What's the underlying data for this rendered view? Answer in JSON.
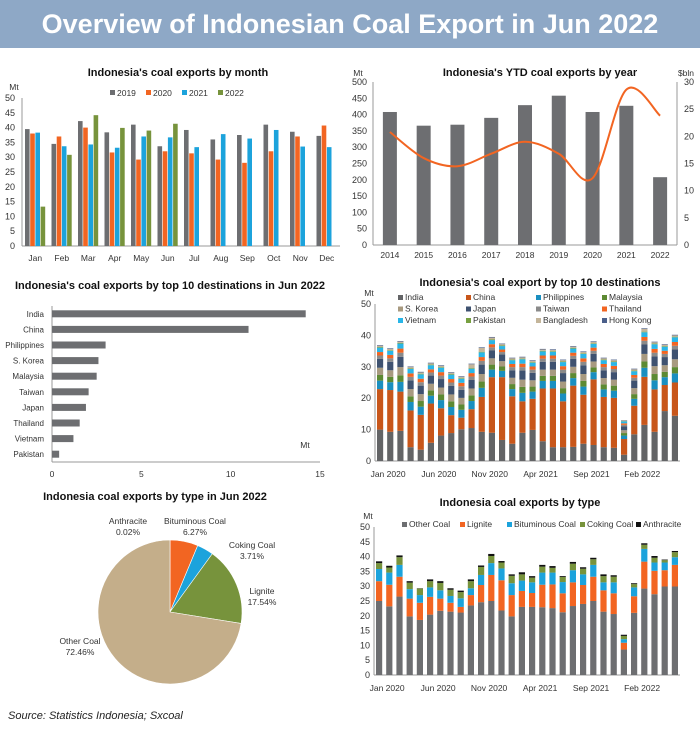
{
  "header": {
    "title": "Overview of Indonesian Coal Export in Jun 2022"
  },
  "footer": {
    "source": "Source: Statistics Indonesia; Sxcoal"
  },
  "colors": {
    "banner": "#8ea8c6",
    "gray": "#6d6e71",
    "orange": "#f26522",
    "blue": "#1ca3dc",
    "green": "#77933c"
  },
  "chart_data": [
    {
      "type": "bar",
      "title": "Indonesia's coal exports by month",
      "ylabel": "Mt",
      "ylim": [
        0,
        50
      ],
      "yticks": [
        0,
        5,
        10,
        15,
        20,
        25,
        30,
        35,
        40,
        45,
        50
      ],
      "legend": "top",
      "categories": [
        "Jan",
        "Feb",
        "Mar",
        "Apr",
        "May",
        "Jun",
        "Jul",
        "Aug",
        "Sep",
        "Oct",
        "Nov",
        "Dec"
      ],
      "series": [
        {
          "name": "2019",
          "color": "#6d6e71",
          "values": [
            39.5,
            34.5,
            42.2,
            38.4,
            41,
            33.7,
            39.2,
            36,
            37.5,
            41,
            38.6,
            37.2
          ]
        },
        {
          "name": "2020",
          "color": "#f26522",
          "values": [
            38,
            37,
            40,
            31.6,
            29.2,
            32,
            31.3,
            29.2,
            28.1,
            32,
            37,
            40.7
          ]
        },
        {
          "name": "2021",
          "color": "#1ca3dc",
          "values": [
            38.3,
            33.7,
            34.3,
            33.2,
            37,
            36.7,
            33.4,
            37.8,
            36.3,
            39.2,
            33.6,
            33.4
          ]
        },
        {
          "name": "2022",
          "color": "#77933c",
          "values": [
            13.3,
            30.8,
            44.2,
            39.9,
            39,
            41.3,
            null,
            null,
            null,
            null,
            null,
            null
          ]
        }
      ]
    },
    {
      "type": "bar+line",
      "title": "Indonesia's YTD coal exports by year",
      "ylabel": "Mt",
      "y2label": "$bln",
      "ylim": [
        0,
        500
      ],
      "yticks": [
        0,
        50,
        100,
        150,
        200,
        250,
        300,
        350,
        400,
        450,
        500
      ],
      "y2lim": [
        0,
        30
      ],
      "y2ticks": [
        0,
        5,
        10,
        15,
        20,
        25,
        30
      ],
      "categories": [
        "2014",
        "2015",
        "2016",
        "2017",
        "2018",
        "2019",
        "2020",
        "2021",
        "2022"
      ],
      "bars": {
        "color": "#6d6e71",
        "values": [
          408,
          366,
          369,
          390,
          429,
          458,
          408,
          427,
          208
        ]
      },
      "line": {
        "color": "#f26522",
        "values": [
          20.8,
          16,
          14.5,
          16.8,
          19,
          16.8,
          12.3,
          28.6,
          23.8
        ]
      }
    },
    {
      "type": "bar",
      "orientation": "horizontal",
      "title": "Indonesia's  coal exports by top 10 destinations in Jun 2022",
      "xlabel": "Mt",
      "xlim": [
        0,
        15
      ],
      "xticks": [
        0,
        5,
        10,
        15
      ],
      "categories": [
        "India",
        "China",
        "Philippines",
        "S. Korea",
        "Malaysia",
        "Taiwan",
        "Japan",
        "Thailand",
        "Vietnam",
        "Pakistan"
      ],
      "values": [
        14.2,
        11,
        3,
        2.6,
        2.5,
        2.05,
        1.9,
        1.55,
        1.2,
        0.4
      ],
      "color": "#6d6e71"
    },
    {
      "type": "bar",
      "stacked": true,
      "title": "Indonesia's coal export by top 10 destinations",
      "ylabel": "Mt",
      "ylim": [
        0,
        50
      ],
      "yticks": [
        0,
        10,
        20,
        30,
        40,
        50
      ],
      "xtick_labels": [
        "Jan 2020",
        "Jun 2020",
        "Nov 2020",
        "Apr 2021",
        "Sep 2021",
        "Feb 2022"
      ],
      "xtick_every": 5,
      "legend": "top",
      "months": 30,
      "series": [
        {
          "name": "India",
          "color": "#636466",
          "values": [
            10,
            9.3,
            9.6,
            4.4,
            3.6,
            5.8,
            8.1,
            8.9,
            10.1,
            10.5,
            9.3,
            9.0,
            6.7,
            5.5,
            9.0,
            9.9,
            6.3,
            4.4,
            4.4,
            4.5,
            5.5,
            5.1,
            4.4,
            4.2,
            2.0,
            8.5,
            11.5,
            9.3,
            15.9,
            14.4
          ]
        },
        {
          "name": "China",
          "color": "#c8561a",
          "values": [
            12.9,
            13.3,
            12.5,
            11.7,
            11.1,
            12.5,
            8.7,
            5.7,
            3.7,
            6.0,
            11.1,
            17.7,
            20.0,
            15.1,
            10.0,
            9.9,
            16.8,
            18.7,
            14.6,
            19.5,
            15.6,
            20.9,
            16.0,
            15.9,
            5.0,
            9.1,
            15.3,
            13.5,
            8.3,
            10.6
          ]
        },
        {
          "name": "Philippines",
          "color": "#1a8fc0",
          "values": [
            2.7,
            2.5,
            3.1,
            2.7,
            2.6,
            2.5,
            2.6,
            2.6,
            2.5,
            2.6,
            2.9,
            2.4,
            2.0,
            2.3,
            2.7,
            2.3,
            2.4,
            2.4,
            2.5,
            2.4,
            2.6,
            2.3,
            2.4,
            2.3,
            1.1,
            2.2,
            2.9,
            2.9,
            2.5,
            2.9
          ]
        },
        {
          "name": "Malaysia",
          "color": "#5d8a33",
          "values": [
            1.8,
            1.7,
            2.1,
            1.8,
            1.8,
            1.7,
            1.8,
            1.8,
            1.7,
            1.8,
            2.0,
            1.6,
            1.4,
            1.6,
            1.9,
            1.6,
            1.6,
            1.6,
            1.7,
            1.6,
            1.8,
            1.5,
            1.6,
            1.6,
            0.8,
            1.5,
            2.0,
            2.0,
            1.7,
            2.0
          ]
        },
        {
          "name": "S. Korea",
          "color": "#a89a80",
          "values": [
            2.3,
            2.1,
            2.6,
            2.3,
            2.2,
            2.1,
            2.2,
            2.2,
            2.1,
            2.2,
            2.4,
            2.0,
            1.7,
            2.0,
            2.3,
            2.0,
            2.0,
            2.0,
            2.1,
            2.0,
            2.2,
            1.9,
            2.0,
            1.9,
            0.9,
            1.9,
            2.4,
            2.5,
            2.1,
            2.5
          ]
        },
        {
          "name": "Japan",
          "color": "#3f5270",
          "values": [
            2.8,
            2.7,
            3.3,
            2.8,
            2.7,
            2.6,
            2.7,
            2.7,
            2.6,
            2.7,
            3.0,
            2.5,
            2.1,
            2.4,
            2.9,
            2.4,
            2.5,
            2.5,
            2.7,
            2.5,
            2.8,
            2.4,
            2.5,
            2.4,
            1.2,
            2.4,
            3.0,
            3.1,
            2.6,
            3.1
          ]
        },
        {
          "name": "Taiwan",
          "color": "#8a8a8a",
          "values": [
            1.1,
            1.1,
            1.3,
            1.1,
            1.1,
            1.0,
            1.1,
            1.1,
            1.1,
            1.1,
            1.2,
            1.0,
            0.8,
            1.0,
            1.1,
            1.0,
            1.0,
            1.0,
            1.1,
            1.0,
            1.1,
            1.0,
            1.0,
            1.0,
            0.5,
            0.9,
            1.2,
            1.2,
            1.0,
            1.2
          ]
        },
        {
          "name": "Thailand",
          "color": "#f26522",
          "values": [
            1.1,
            1.1,
            1.3,
            1.1,
            1.1,
            1.0,
            1.1,
            1.1,
            1.1,
            1.1,
            1.2,
            1.0,
            0.8,
            1.0,
            1.1,
            1.0,
            1.0,
            1.0,
            1.1,
            1.0,
            1.1,
            1.0,
            1.0,
            1.0,
            0.5,
            0.9,
            1.2,
            1.2,
            1.0,
            1.2
          ]
        },
        {
          "name": "Vietnam",
          "color": "#29b6e8",
          "values": [
            1.4,
            1.3,
            1.6,
            1.4,
            1.4,
            1.3,
            1.4,
            1.4,
            1.3,
            1.4,
            1.5,
            1.3,
            1.1,
            1.2,
            1.4,
            1.2,
            1.3,
            1.2,
            1.3,
            1.3,
            1.4,
            1.2,
            1.2,
            1.2,
            0.6,
            1.2,
            1.5,
            1.5,
            1.3,
            1.5
          ]
        },
        {
          "name": "Pakistan",
          "color": "#77a040",
          "values": [
            0.2,
            0.2,
            0.2,
            0.2,
            0.2,
            0.2,
            0.2,
            0.2,
            0.2,
            0.2,
            0.2,
            0.2,
            0.2,
            0.2,
            0.2,
            0.2,
            0.2,
            0.2,
            0.2,
            0.2,
            0.2,
            0.2,
            0.2,
            0.2,
            0.1,
            0.2,
            0.2,
            0.2,
            0.2,
            0.2
          ]
        },
        {
          "name": "Bangladesh",
          "color": "#c4b59a",
          "values": [
            0.4,
            0.4,
            0.4,
            0.4,
            0.4,
            0.4,
            0.4,
            0.4,
            0.4,
            1.2,
            1.2,
            0.6,
            0.4,
            0.4,
            0.4,
            0.4,
            0.4,
            0.4,
            0.4,
            0.4,
            0.4,
            0.4,
            0.4,
            0.4,
            0.2,
            0.4,
            0.9,
            0.4,
            0.4,
            0.4
          ]
        },
        {
          "name": "Hong Kong",
          "color": "#4b5f8a",
          "values": [
            0.2,
            0.2,
            0.2,
            0.2,
            0.2,
            0.2,
            0.2,
            0.2,
            0.2,
            0.2,
            0.2,
            0.2,
            0.2,
            0.2,
            0.2,
            0.2,
            0.2,
            0.2,
            0.2,
            0.2,
            0.2,
            0.2,
            0.2,
            0.2,
            0.1,
            0.2,
            0.2,
            0.2,
            0.2,
            0.2
          ]
        }
      ]
    },
    {
      "type": "pie",
      "title": "Indonesia coal exports by type in  Jun 2022",
      "slices": [
        {
          "label": "Anthracite",
          "value": 0.02,
          "text": "0.02%",
          "color": "#111111"
        },
        {
          "label": "Bituminous Coal",
          "value": 6.27,
          "text": "6.27%",
          "color": "#f26522"
        },
        {
          "label": "Coking Coal",
          "value": 3.71,
          "text": "3.71%",
          "color": "#1ca3dc"
        },
        {
          "label": "Lignite",
          "value": 17.54,
          "text": "17.54%",
          "color": "#77933c"
        },
        {
          "label": "Other Coal",
          "value": 72.46,
          "text": "72.46%",
          "color": "#c4ae8a"
        }
      ]
    },
    {
      "type": "bar",
      "stacked": true,
      "title": "Indonesia coal exports by type",
      "ylabel": "Mt",
      "ylim": [
        0,
        50
      ],
      "yticks": [
        0,
        5,
        10,
        15,
        20,
        25,
        30,
        35,
        40,
        45,
        50
      ],
      "xtick_labels": [
        "Jan 2020",
        "Jun 2020",
        "Nov 2020",
        "Apr 2021",
        "Sep 2021",
        "Feb 2022"
      ],
      "xtick_every": 5,
      "legend": "top",
      "months": 30,
      "series": [
        {
          "name": "Other Coal",
          "color": "#6d6e71",
          "values": [
            25,
            23.2,
            26.5,
            19.8,
            18.6,
            20.4,
            21.7,
            21.4,
            21.1,
            23.5,
            24.6,
            25,
            21.8,
            19.8,
            23,
            23,
            22.9,
            22.6,
            21.2,
            23.3,
            24,
            25,
            21.4,
            20.6,
            8.6,
            21,
            29.2,
            27.3,
            29.9,
            29.9
          ]
        },
        {
          "name": "Lignite",
          "color": "#f26522",
          "values": [
            6.7,
            7.3,
            6.7,
            6.0,
            5.8,
            6.0,
            4.1,
            3.0,
            1.9,
            3.5,
            5.8,
            8.8,
            10.2,
            7.2,
            5.4,
            4.7,
            7.6,
            8.0,
            6.4,
            8.0,
            6.4,
            8.2,
            7.2,
            7.0,
            2.3,
            5.6,
            9.1,
            7.9,
            5.5,
            7.3
          ]
        },
        {
          "name": "Bituminous Coal",
          "color": "#1ca3dc",
          "values": [
            4.1,
            4.1,
            4.0,
            3.2,
            2.6,
            3.2,
            2.8,
            2.3,
            2.9,
            2.3,
            3.4,
            4.0,
            4.0,
            4.0,
            3.5,
            3.6,
            4.1,
            4.0,
            3.8,
            4.1,
            3.6,
            4.0,
            2.7,
            3.7,
            1.2,
            3.0,
            4.3,
            2.8,
            2.6,
            2.6
          ]
        },
        {
          "name": "Coking Coal",
          "color": "#77933c",
          "values": [
            2.0,
            1.7,
            2.6,
            2.2,
            2.2,
            2.1,
            2.5,
            2.1,
            2.1,
            2.4,
            2.7,
            2.4,
            2.0,
            2.5,
            2.1,
            1.6,
            2.0,
            1.6,
            1.7,
            2.2,
            1.9,
            1.9,
            2.1,
            1.9,
            1.1,
            1.1,
            1.4,
            1.6,
            0.8,
            1.7
          ]
        },
        {
          "name": "Anthracite",
          "color": "#111111",
          "values": [
            0.6,
            0.6,
            0.6,
            0.5,
            0.1,
            0.6,
            0.6,
            0.5,
            0.5,
            0.6,
            0.5,
            0.7,
            0.5,
            0.5,
            0.7,
            0.5,
            0.6,
            0.6,
            0.3,
            0.6,
            0.5,
            0.5,
            0.6,
            0.5,
            0.4,
            0.3,
            0.5,
            0.6,
            0.2,
            0.4
          ]
        }
      ]
    }
  ]
}
